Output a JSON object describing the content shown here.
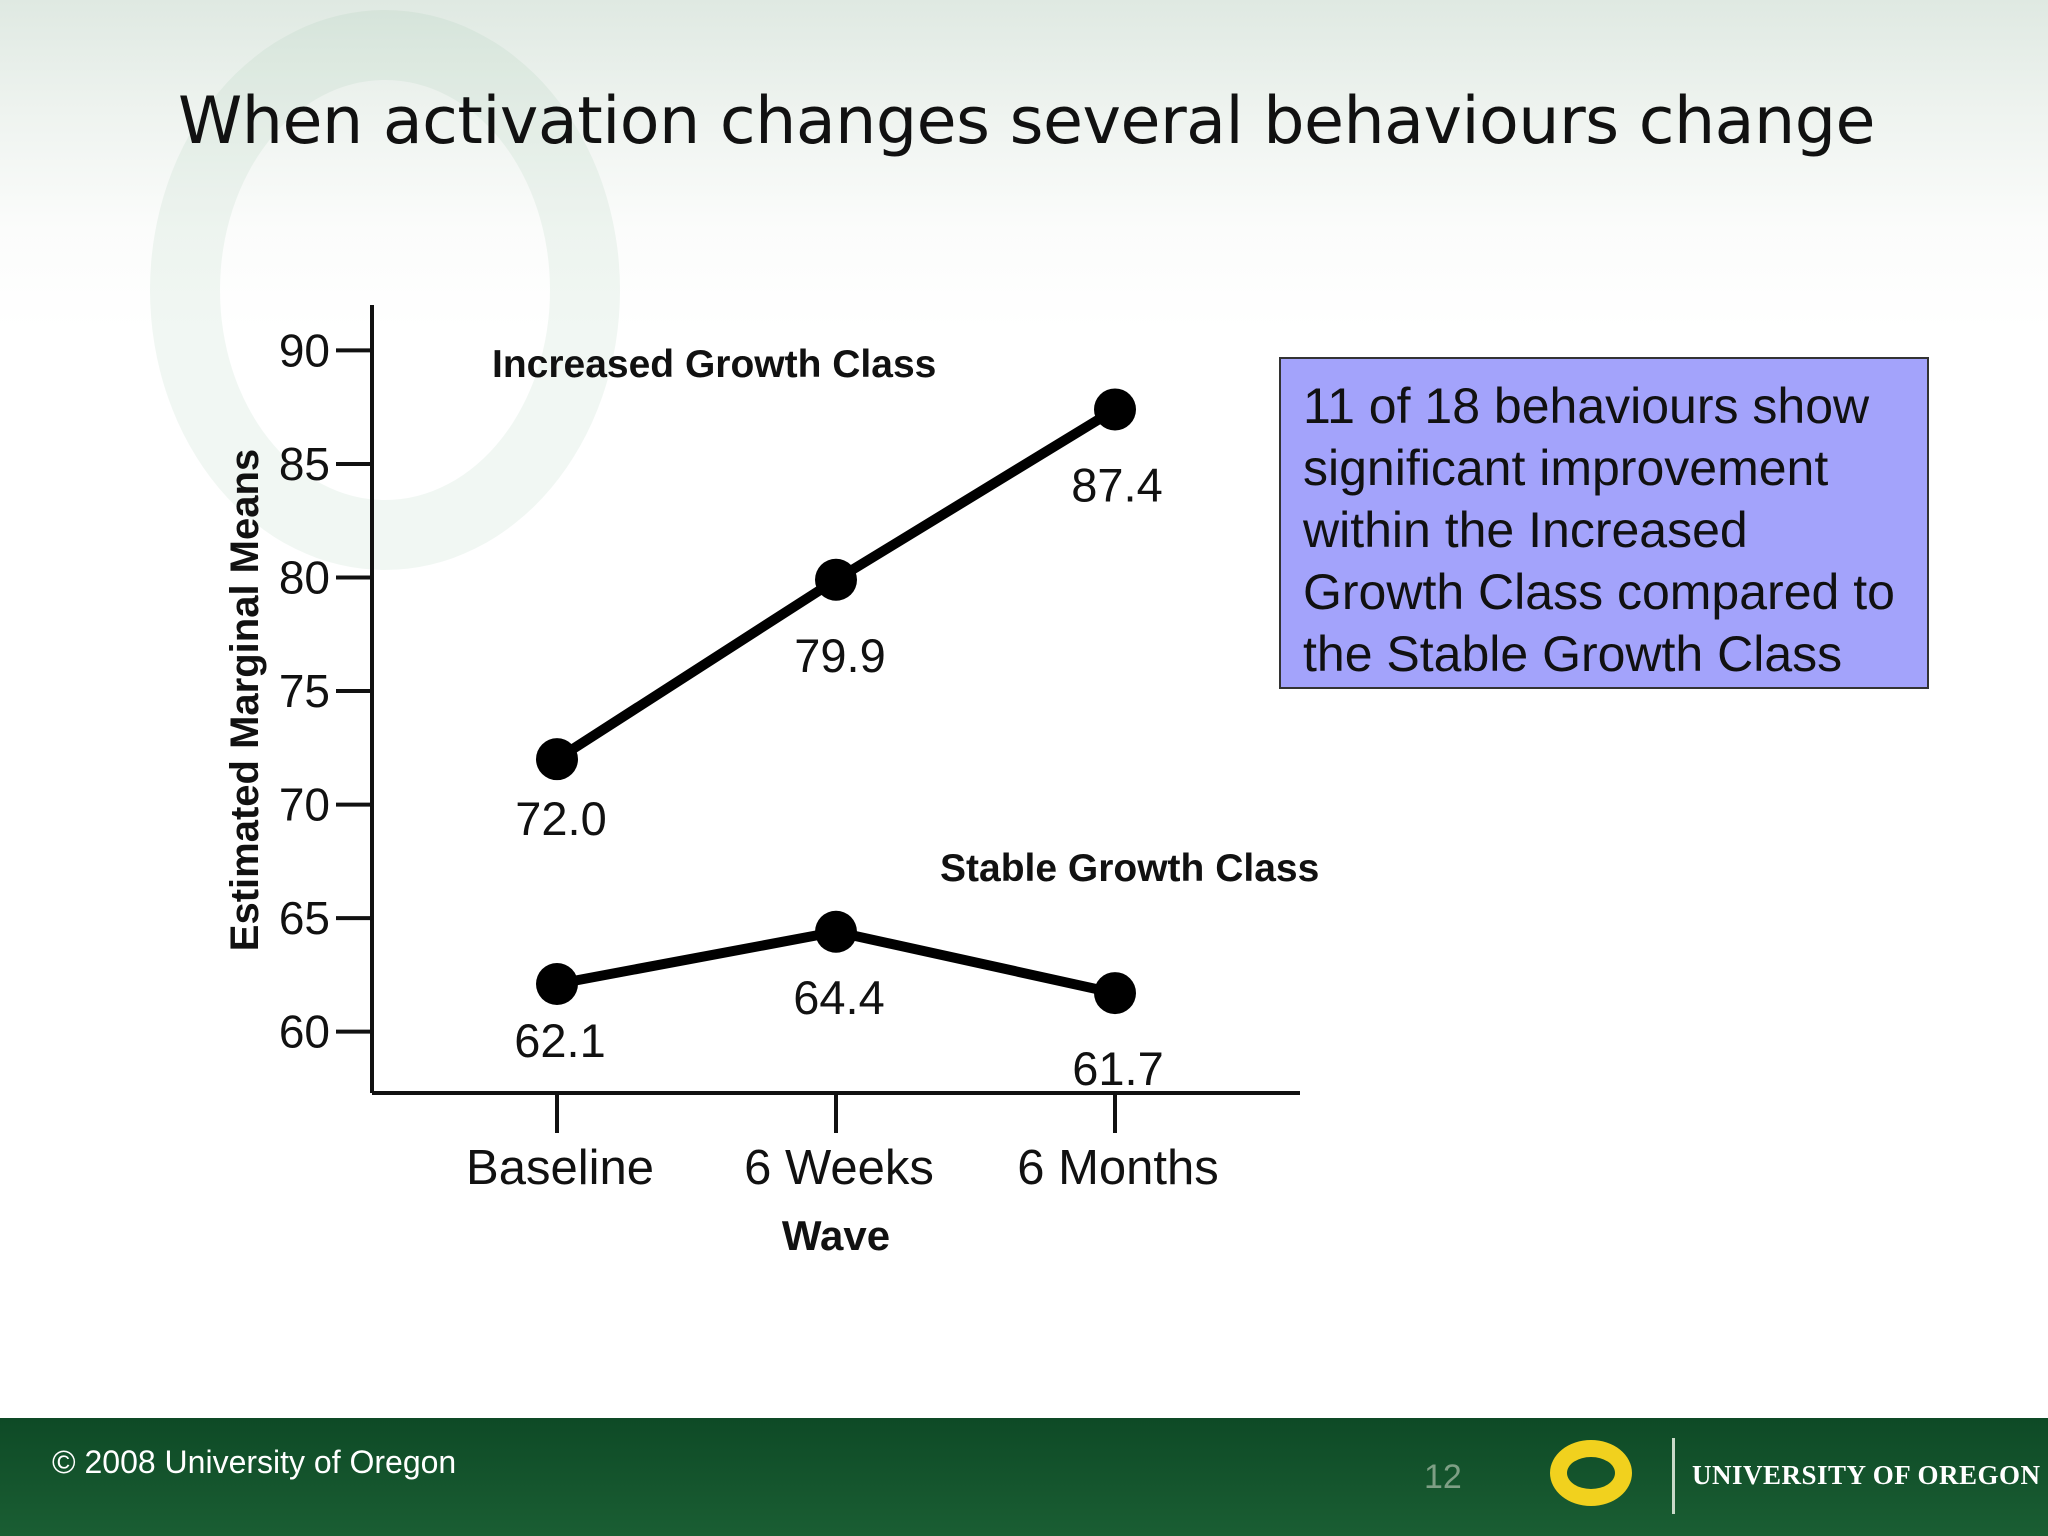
{
  "slide": {
    "title": "When activation changes several behaviours change"
  },
  "callout": {
    "text": "11 of 18 behaviours show significant improvement within the Increased Growth Class compared to the Stable Growth Class"
  },
  "chart_data": {
    "type": "line",
    "title": "",
    "xlabel": "Wave",
    "ylabel": "Estimated Marginal Means",
    "categories": [
      "Baseline",
      "6 Weeks",
      "6 Months"
    ],
    "ylim": [
      57.3,
      92
    ],
    "yticks": [
      60,
      65,
      70,
      75,
      80,
      85,
      90
    ],
    "grid": false,
    "series": [
      {
        "name": "Increased Growth Class",
        "values": [
          72.0,
          79.9,
          87.4
        ],
        "value_labels": [
          "72.0",
          "79.9",
          "87.4"
        ],
        "color": "#000000"
      },
      {
        "name": "Stable Growth Class",
        "values": [
          62.1,
          64.4,
          61.7
        ],
        "value_labels": [
          "62.1",
          "64.4",
          "61.7"
        ],
        "color": "#000000"
      }
    ]
  },
  "footer": {
    "copyright": "© 2008 University of Oregon",
    "page_number": "12",
    "logo_text": "UNIVERSITY OF OREGON"
  },
  "colors": {
    "callout_bg": "#a3a3fb",
    "footer_bg": "#1a5e33",
    "logo_gold": "#f1d11e"
  },
  "icons": {
    "logo": "oregon-o-logo-icon",
    "background_mark": "oregon-o-watermark-icon"
  }
}
